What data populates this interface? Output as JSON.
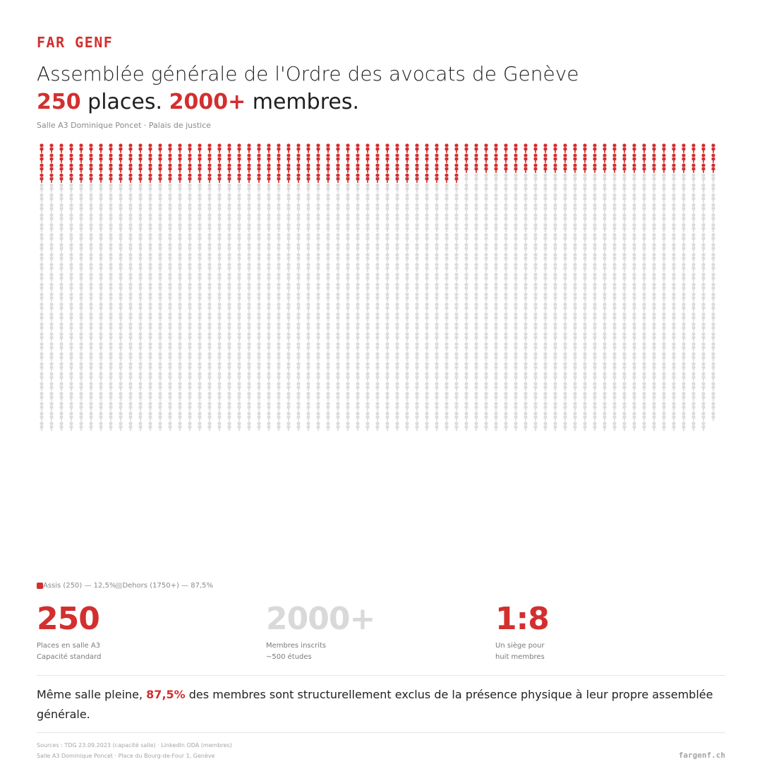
{
  "brand": "FAR GENF",
  "title": "Assemblée générale de l'Ordre des avocats de Genève",
  "headline": {
    "num1": "250",
    "text1": " places. ",
    "num2": "2000+",
    "text2": " membres."
  },
  "subtitle": "Salle A3 Dominique Poncet · Palais de justice",
  "chart_data": {
    "type": "pictogram",
    "unit": "person",
    "series": [
      {
        "name": "Assis (250) — 12,5%",
        "values": [
          250
        ]
      },
      {
        "name": "Dehors (1750+) — 87,5%",
        "values": [
          1750
        ]
      }
    ],
    "total": 2000,
    "columns": 69,
    "colors": {
      "assis": "#d32f2f",
      "dehors": "#dcdcdc"
    },
    "legend_position": "bottom-left"
  },
  "legend": {
    "assis": "Assis (250) — 12,5%",
    "dehors": "Dehors (1750+) — 87,5%"
  },
  "stats": [
    {
      "value": "250",
      "line1": "Places en salle A3",
      "line2": "Capacité standard",
      "color": "#d32f2f"
    },
    {
      "value": "2000+",
      "line1": "Membres inscrits",
      "line2": "~500 études",
      "color": "#d9d9d9"
    },
    {
      "value": "1:8",
      "line1": "Un siège pour",
      "line2": "huit membres",
      "color": "#d32f2f"
    }
  ],
  "statement": {
    "before": "Même salle pleine, ",
    "highlight": "87,5%",
    "after": " des membres sont structurellement exclus de la présence physique à leur propre assemblée générale."
  },
  "sources": {
    "line1": "Sources : TDG 23.09.2023 (capacité salle) · LinkedIn ODA (membres)",
    "line2": "Salle A3 Dominique Poncet · Place du Bourg-de-Four 1, Genève"
  },
  "site": "fargenf.ch"
}
